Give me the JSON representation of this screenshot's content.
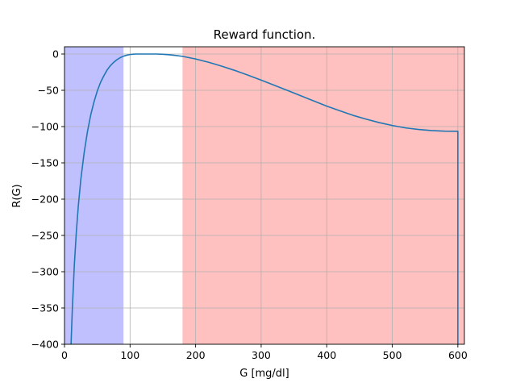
{
  "chart_data": {
    "type": "line",
    "title": "Reward function.",
    "xlabel": "G [mg/dl]",
    "ylabel": "R(G)",
    "xlim": [
      0,
      610
    ],
    "ylim": [
      -400,
      10
    ],
    "x_ticks": [
      0,
      100,
      200,
      300,
      400,
      500,
      600
    ],
    "y_ticks": [
      0,
      -50,
      -100,
      -150,
      -200,
      -250,
      -300,
      -350,
      -400
    ],
    "x_tick_labels": [
      "0",
      "100",
      "200",
      "300",
      "400",
      "500",
      "600"
    ],
    "y_tick_labels": [
      "0",
      "−50",
      "−100",
      "−150",
      "−200",
      "−250",
      "−300",
      "−350",
      "−400"
    ],
    "grid": true,
    "shaded_regions": [
      {
        "x_start": 0,
        "x_end": 90,
        "color": "#c0c0ff"
      },
      {
        "x_start": 180,
        "x_end": 610,
        "color": "#ffc0c0"
      }
    ],
    "series": [
      {
        "color": "#1f77b4",
        "x": [
          10,
          12,
          15,
          18,
          21,
          25,
          30,
          35,
          40,
          45,
          50,
          55,
          60,
          65,
          70,
          75,
          80,
          85,
          90,
          95,
          100,
          105,
          110,
          115,
          120,
          125,
          130,
          135,
          140,
          150,
          160,
          170,
          180,
          200,
          220,
          240,
          260,
          280,
          300,
          320,
          340,
          360,
          380,
          400,
          420,
          440,
          460,
          480,
          500,
          520,
          540,
          560,
          580,
          600,
          600
        ],
        "y": [
          -400,
          -350,
          -291,
          -246,
          -210,
          -172,
          -136,
          -107,
          -84,
          -66,
          -51,
          -39,
          -30,
          -22,
          -16,
          -11.5,
          -7.8,
          -5,
          -3,
          -1.6,
          -0.7,
          -0.2,
          0,
          0,
          0,
          0,
          0,
          0,
          0,
          -0.3,
          -1,
          -2,
          -3.2,
          -6.8,
          -11.4,
          -16.8,
          -22.7,
          -29.2,
          -36,
          -43,
          -50.2,
          -57.4,
          -64.6,
          -71.8,
          -78.2,
          -84.5,
          -89.7,
          -94.5,
          -98.5,
          -101.8,
          -104,
          -105.5,
          -106.3,
          -106.5,
          -400
        ]
      }
    ]
  }
}
